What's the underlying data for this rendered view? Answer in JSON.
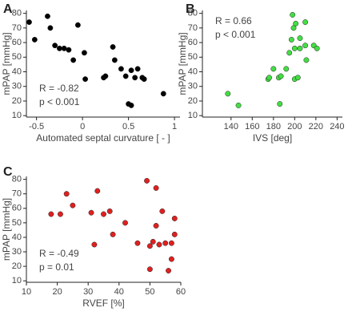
{
  "chart_data": [
    {
      "type": "scatter",
      "panel_label": "A",
      "x_label": "Automated septal curvature [ - ]",
      "y_label": "mPAP [mmHg]",
      "annotations": [
        "R = -0.82",
        "p < 0.001"
      ],
      "annotation_corner": "lower-left",
      "xlim": [
        -0.61,
        1.06
      ],
      "ylim": [
        9,
        82
      ],
      "xticks": [
        -0.5,
        0,
        0.5,
        1
      ],
      "yticks": [
        10,
        20,
        30,
        40,
        50,
        60,
        70,
        80
      ],
      "series": [
        {
          "color": "#000000",
          "x": [
            -0.58,
            -0.52,
            -0.38,
            -0.35,
            -0.3,
            -0.25,
            -0.2,
            -0.15,
            -0.1,
            -0.05,
            0.02,
            0.03,
            0.23,
            0.25,
            0.33,
            0.35,
            0.42,
            0.47,
            0.5,
            0.53,
            0.53,
            0.57,
            0.6,
            0.65,
            0.67,
            0.88
          ],
          "values": [
            74,
            62,
            78,
            70,
            58,
            56,
            56,
            55,
            48,
            72,
            53,
            35,
            36,
            37,
            57,
            48,
            42,
            37,
            18,
            17,
            41,
            36,
            42,
            36,
            35,
            25
          ]
        }
      ]
    },
    {
      "type": "scatter",
      "panel_label": "B",
      "x_label": "IVS [deg]",
      "y_label": "mPAP [mmHg]",
      "annotations": [
        "R = 0.66",
        "p < 0.001"
      ],
      "annotation_corner": "upper-left",
      "xlim": [
        113,
        245
      ],
      "ylim": [
        9,
        82
      ],
      "xticks": [
        140,
        160,
        180,
        200,
        220,
        240
      ],
      "yticks": [
        10,
        20,
        30,
        40,
        50,
        60,
        70,
        80
      ],
      "series": [
        {
          "color": "#44dd44",
          "x": [
            137,
            147,
            175,
            176,
            180,
            185,
            186,
            187,
            192,
            195,
            197,
            198,
            199,
            200,
            200,
            201,
            203,
            205,
            205,
            210,
            210,
            211,
            218,
            221
          ],
          "values": [
            25,
            17,
            35,
            36,
            42,
            36,
            18,
            37,
            42,
            53,
            62,
            79,
            70,
            35,
            56,
            73,
            36,
            56,
            63,
            74,
            58,
            48,
            58,
            56
          ]
        }
      ]
    },
    {
      "type": "scatter",
      "panel_label": "C",
      "x_label": "RVEF [%]",
      "y_label": "mPAP [mmHg]",
      "annotations": [
        "R = -0.49",
        "p = 0.01"
      ],
      "annotation_corner": "lower-left",
      "xlim": [
        10,
        60
      ],
      "ylim": [
        9,
        82
      ],
      "xticks": [
        10,
        20,
        30,
        40,
        50,
        60
      ],
      "yticks": [
        10,
        20,
        30,
        40,
        50,
        60,
        70,
        80
      ],
      "series": [
        {
          "color": "#e02020",
          "x": [
            18,
            21,
            23,
            25,
            31,
            32,
            33,
            35,
            37,
            38,
            42,
            46,
            49,
            50,
            50,
            51,
            52,
            52,
            53,
            54,
            55,
            56,
            57,
            58,
            58,
            57
          ],
          "values": [
            56,
            56,
            70,
            62,
            57,
            35,
            72,
            56,
            58,
            42,
            50,
            36,
            79,
            18,
            34,
            37,
            74,
            48,
            35,
            58,
            36,
            17,
            36,
            42,
            53,
            25
          ]
        }
      ]
    }
  ]
}
